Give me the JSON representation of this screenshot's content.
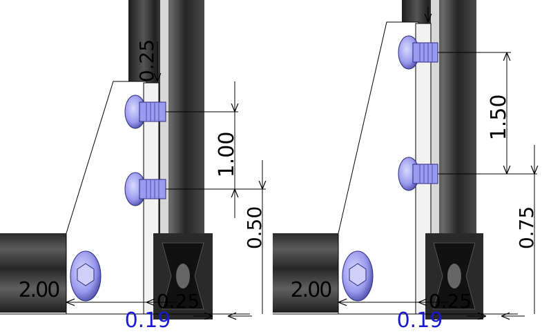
{
  "left_view": {
    "dim_top": "0.25",
    "dim_spacing": "1.00",
    "dim_lower": "0.50",
    "dim_width": "2.00",
    "dim_rail": "0.25",
    "dim_offset": "0.19"
  },
  "right_view": {
    "dim_spacing": "1.50",
    "dim_lower": "0.75",
    "dim_width": "2.00",
    "dim_rail": "0.25",
    "dim_offset": "0.19"
  },
  "colors": {
    "extrusion_dark": "#2b2b2b",
    "extrusion_mid": "#5a5a5a",
    "plate": "#f2f2f2",
    "bolt": "#8f8fe8",
    "bolt_dark": "#4b4bb0",
    "dimension_line": "#000000",
    "offset_text": "#1a1acc"
  }
}
